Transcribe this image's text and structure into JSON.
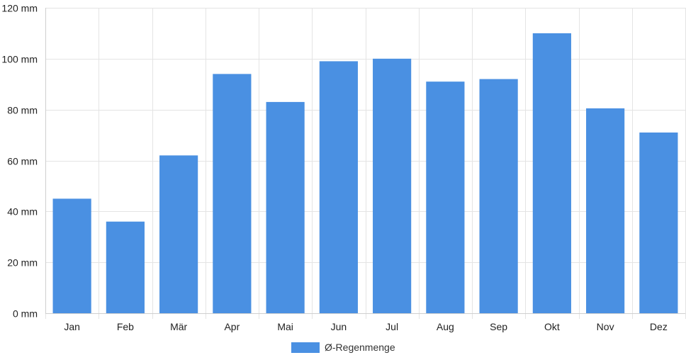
{
  "chart_data": {
    "type": "bar",
    "title": "",
    "xlabel": "",
    "ylabel": "",
    "categories": [
      "Jan",
      "Feb",
      "Mär",
      "Apr",
      "Mai",
      "Jun",
      "Jul",
      "Aug",
      "Sep",
      "Okt",
      "Nov",
      "Dez"
    ],
    "series": [
      {
        "name": "Ø-Regenmenge",
        "values": [
          45,
          36,
          62,
          94,
          83,
          99,
          100,
          91,
          92,
          110,
          80.5,
          71
        ],
        "color": "#4a90e2"
      }
    ],
    "ylim": [
      0,
      120
    ],
    "yticks": [
      0,
      20,
      40,
      60,
      80,
      100,
      120
    ],
    "y_unit": "mm",
    "grid": true,
    "legend_position": "bottom-center"
  }
}
